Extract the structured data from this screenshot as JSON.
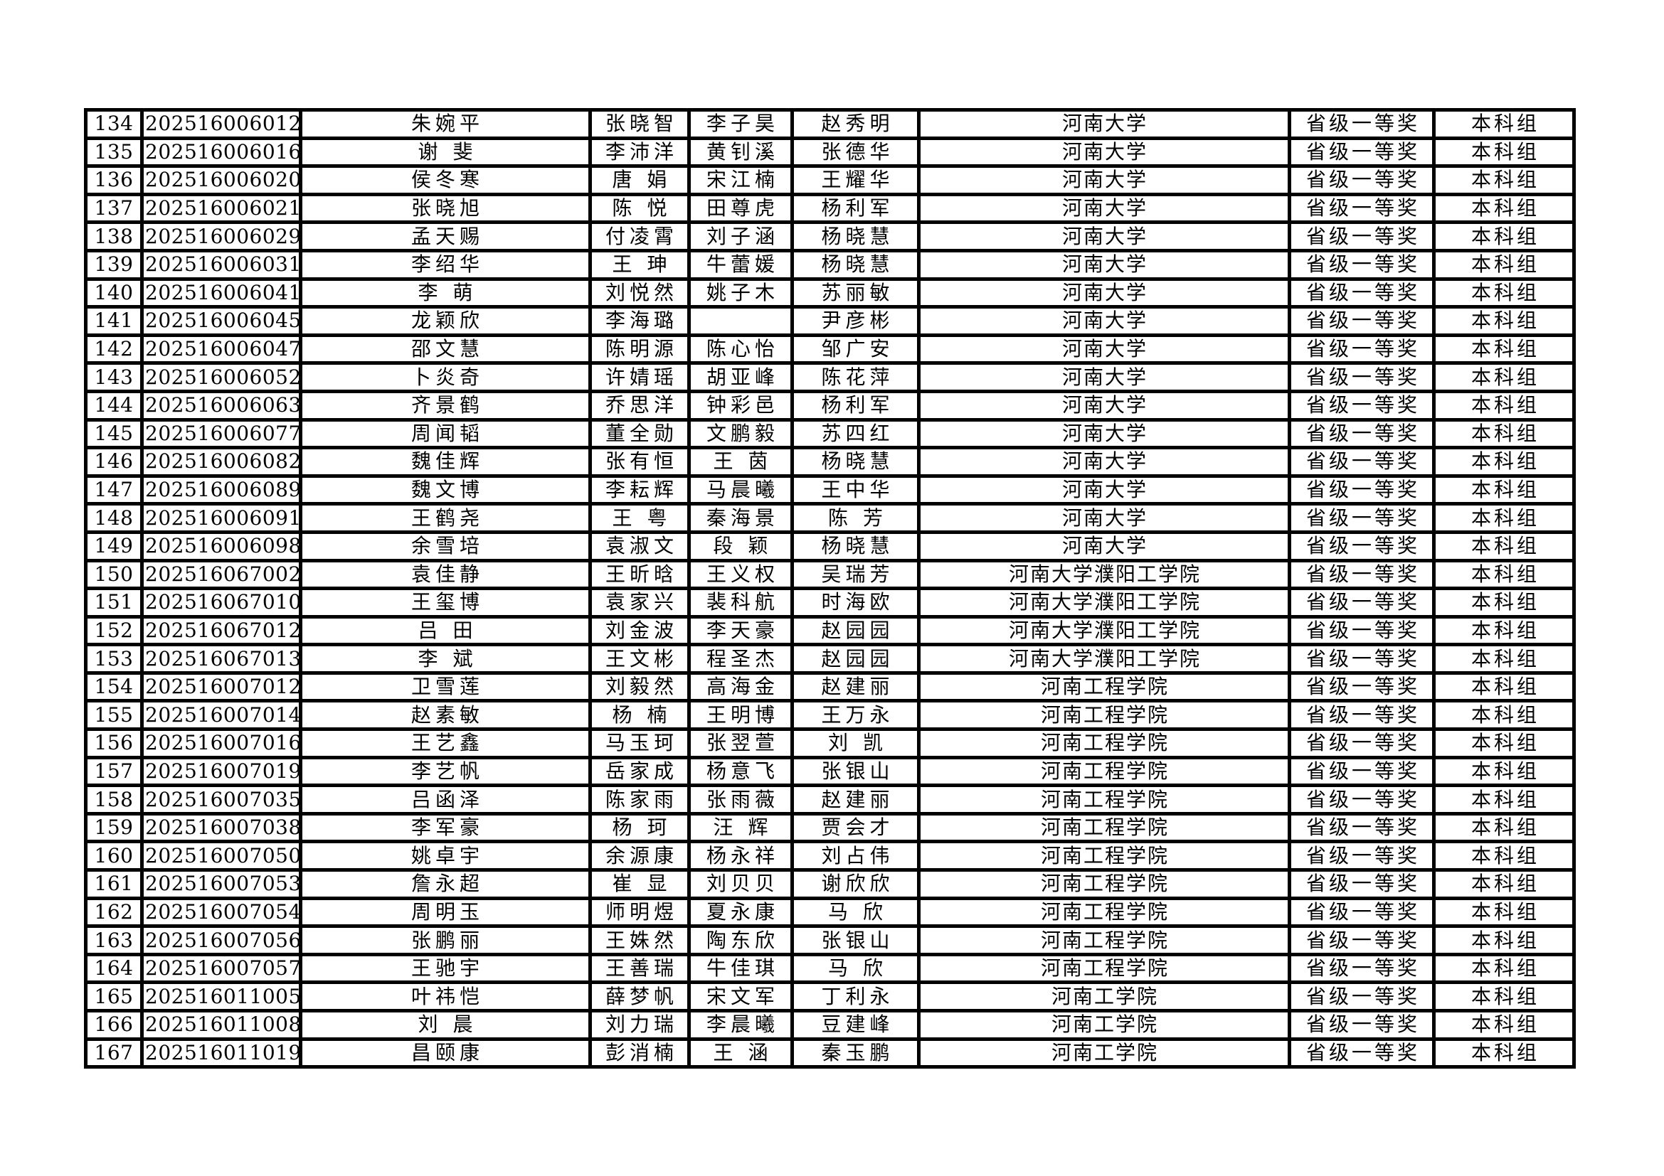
{
  "page": {
    "background_color": "#ffffff",
    "text_color": "#000000",
    "table_border_color": "#000000"
  },
  "table": {
    "column_keys": [
      "no",
      "reg_id",
      "member1",
      "member2",
      "member3",
      "teacher",
      "school",
      "award",
      "group"
    ],
    "rows": [
      [
        "134",
        "202516006012",
        "朱婉平",
        "张晓智",
        "李子昊",
        "赵秀明",
        "河南大学",
        "省级一等奖",
        "本科组"
      ],
      [
        "135",
        "202516006016",
        "谢 斐",
        "李沛洋",
        "黄钊溪",
        "张德华",
        "河南大学",
        "省级一等奖",
        "本科组"
      ],
      [
        "136",
        "202516006020",
        "侯冬寒",
        "唐 娟",
        "宋江楠",
        "王耀华",
        "河南大学",
        "省级一等奖",
        "本科组"
      ],
      [
        "137",
        "202516006021",
        "张晓旭",
        "陈 悦",
        "田尊虎",
        "杨利军",
        "河南大学",
        "省级一等奖",
        "本科组"
      ],
      [
        "138",
        "202516006029",
        "孟天赐",
        "付凌霄",
        "刘子涵",
        "杨晓慧",
        "河南大学",
        "省级一等奖",
        "本科组"
      ],
      [
        "139",
        "202516006031",
        "李绍华",
        "王 珅",
        "牛蕾媛",
        "杨晓慧",
        "河南大学",
        "省级一等奖",
        "本科组"
      ],
      [
        "140",
        "202516006041",
        "李 萌",
        "刘悦然",
        "姚子木",
        "苏丽敏",
        "河南大学",
        "省级一等奖",
        "本科组"
      ],
      [
        "141",
        "202516006045",
        "龙颖欣",
        "李海璐",
        "",
        "尹彦彬",
        "河南大学",
        "省级一等奖",
        "本科组"
      ],
      [
        "142",
        "202516006047",
        "邵文慧",
        "陈明源",
        "陈心怡",
        "邹广安",
        "河南大学",
        "省级一等奖",
        "本科组"
      ],
      [
        "143",
        "202516006052",
        "卜炎奇",
        "许婧瑶",
        "胡亚峰",
        "陈花萍",
        "河南大学",
        "省级一等奖",
        "本科组"
      ],
      [
        "144",
        "202516006063",
        "齐景鹤",
        "乔思洋",
        "钟彩邑",
        "杨利军",
        "河南大学",
        "省级一等奖",
        "本科组"
      ],
      [
        "145",
        "202516006077",
        "周闻韬",
        "董全勋",
        "文鹏毅",
        "苏四红",
        "河南大学",
        "省级一等奖",
        "本科组"
      ],
      [
        "146",
        "202516006082",
        "魏佳辉",
        "张有恒",
        "王 茵",
        "杨晓慧",
        "河南大学",
        "省级一等奖",
        "本科组"
      ],
      [
        "147",
        "202516006089",
        "魏文博",
        "李耘辉",
        "马晨曦",
        "王中华",
        "河南大学",
        "省级一等奖",
        "本科组"
      ],
      [
        "148",
        "202516006091",
        "王鹤尧",
        "王 粤",
        "秦海景",
        "陈 芳",
        "河南大学",
        "省级一等奖",
        "本科组"
      ],
      [
        "149",
        "202516006098",
        "余雪培",
        "袁淑文",
        "段 颖",
        "杨晓慧",
        "河南大学",
        "省级一等奖",
        "本科组"
      ],
      [
        "150",
        "202516067002",
        "袁佳静",
        "王昕晗",
        "王义权",
        "吴瑞芳",
        "河南大学濮阳工学院",
        "省级一等奖",
        "本科组"
      ],
      [
        "151",
        "202516067010",
        "王玺博",
        "袁家兴",
        "裴科航",
        "时海欧",
        "河南大学濮阳工学院",
        "省级一等奖",
        "本科组"
      ],
      [
        "152",
        "202516067012",
        "吕 田",
        "刘金波",
        "李天豪",
        "赵园园",
        "河南大学濮阳工学院",
        "省级一等奖",
        "本科组"
      ],
      [
        "153",
        "202516067013",
        "李 斌",
        "王文彬",
        "程圣杰",
        "赵园园",
        "河南大学濮阳工学院",
        "省级一等奖",
        "本科组"
      ],
      [
        "154",
        "202516007012",
        "卫雪莲",
        "刘毅然",
        "高海金",
        "赵建丽",
        "河南工程学院",
        "省级一等奖",
        "本科组"
      ],
      [
        "155",
        "202516007014",
        "赵素敏",
        "杨 楠",
        "王明博",
        "王万永",
        "河南工程学院",
        "省级一等奖",
        "本科组"
      ],
      [
        "156",
        "202516007016",
        "王艺鑫",
        "马玉珂",
        "张翌萱",
        "刘 凯",
        "河南工程学院",
        "省级一等奖",
        "本科组"
      ],
      [
        "157",
        "202516007019",
        "李艺帆",
        "岳家成",
        "杨意飞",
        "张银山",
        "河南工程学院",
        "省级一等奖",
        "本科组"
      ],
      [
        "158",
        "202516007035",
        "吕函泽",
        "陈家雨",
        "张雨薇",
        "赵建丽",
        "河南工程学院",
        "省级一等奖",
        "本科组"
      ],
      [
        "159",
        "202516007038",
        "李军豪",
        "杨 珂",
        "汪 辉",
        "贾会才",
        "河南工程学院",
        "省级一等奖",
        "本科组"
      ],
      [
        "160",
        "202516007050",
        "姚卓宇",
        "余源康",
        "杨永祥",
        "刘占伟",
        "河南工程学院",
        "省级一等奖",
        "本科组"
      ],
      [
        "161",
        "202516007053",
        "詹永超",
        "崔 显",
        "刘贝贝",
        "谢欣欣",
        "河南工程学院",
        "省级一等奖",
        "本科组"
      ],
      [
        "162",
        "202516007054",
        "周明玉",
        "师明煜",
        "夏永康",
        "马 欣",
        "河南工程学院",
        "省级一等奖",
        "本科组"
      ],
      [
        "163",
        "202516007056",
        "张鹏丽",
        "王姝然",
        "陶东欣",
        "张银山",
        "河南工程学院",
        "省级一等奖",
        "本科组"
      ],
      [
        "164",
        "202516007057",
        "王驰宇",
        "王善瑞",
        "牛佳琪",
        "马 欣",
        "河南工程学院",
        "省级一等奖",
        "本科组"
      ],
      [
        "165",
        "202516011005",
        "叶祎恺",
        "薛梦帆",
        "宋文军",
        "丁利永",
        "河南工学院",
        "省级一等奖",
        "本科组"
      ],
      [
        "166",
        "202516011008",
        "刘 晨",
        "刘力瑞",
        "李晨曦",
        "豆建峰",
        "河南工学院",
        "省级一等奖",
        "本科组"
      ],
      [
        "167",
        "202516011019",
        "昌颐康",
        "彭消楠",
        "王 涵",
        "秦玉鹏",
        "河南工学院",
        "省级一等奖",
        "本科组"
      ]
    ]
  }
}
